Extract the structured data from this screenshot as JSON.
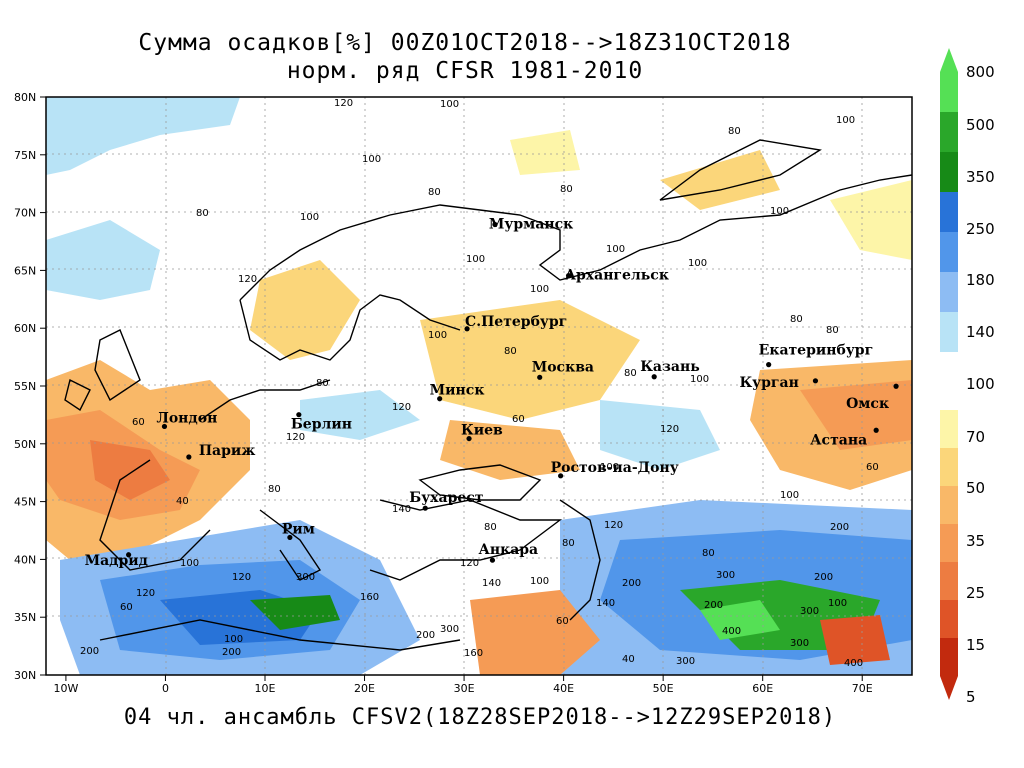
{
  "title": {
    "line1": "Сумма осадков[%] 00Z01OCT2018-->18Z31OCT2018",
    "line2": "норм. ряд CFSR 1981-2010"
  },
  "footer": "04 чл. ансамбль CFSV2(18Z28SEP2018-->12Z29SEP2018)",
  "map": {
    "lat_labels": [
      "80N",
      "75N",
      "70N",
      "65N",
      "60N",
      "55N",
      "50N",
      "45N",
      "40N",
      "35N",
      "30N"
    ],
    "lon_labels": [
      "10W",
      "0",
      "10E",
      "20E",
      "30E",
      "40E",
      "50E",
      "60E",
      "70E"
    ],
    "cities": [
      {
        "name": "Мурманск",
        "lon": 33.1,
        "lat": 68.97,
        "dx": -6,
        "dy": 4
      },
      {
        "name": "Архангельск",
        "lon": 40.5,
        "lat": 64.55,
        "dx": -4,
        "dy": 4
      },
      {
        "name": "С.Петербург",
        "lon": 30.3,
        "lat": 59.95,
        "dx": -2,
        "dy": -3
      },
      {
        "name": "Москва",
        "lon": 37.6,
        "lat": 55.75,
        "dx": -8,
        "dy": -6
      },
      {
        "name": "Казань",
        "lon": 49.1,
        "lat": 55.8,
        "dx": -14,
        "dy": -6
      },
      {
        "name": "Екатеринбург",
        "lon": 60.6,
        "lat": 56.85,
        "dx": -10,
        "dy": -10
      },
      {
        "name": "Курган",
        "lon": 65.3,
        "lat": 55.45,
        "dx": -76,
        "dy": 6
      },
      {
        "name": "Омск",
        "lon": 73.4,
        "lat": 54.98,
        "dx": -50,
        "dy": 22
      },
      {
        "name": "Астана",
        "lon": 71.4,
        "lat": 51.17,
        "dx": -66,
        "dy": 14
      },
      {
        "name": "Минск",
        "lon": 27.55,
        "lat": 53.9,
        "dx": -10,
        "dy": -4
      },
      {
        "name": "Берлин",
        "lon": 13.4,
        "lat": 52.52,
        "dx": -8,
        "dy": 14
      },
      {
        "name": "Киев",
        "lon": 30.5,
        "lat": 50.45,
        "dx": -8,
        "dy": -4
      },
      {
        "name": "Лондон",
        "lon": -0.1,
        "lat": 51.5,
        "dx": -8,
        "dy": -4
      },
      {
        "name": "Париж",
        "lon": 2.35,
        "lat": 48.86,
        "dx": 10,
        "dy": -2
      },
      {
        "name": "Ростов-на-Дону",
        "lon": 39.7,
        "lat": 47.23,
        "dx": -10,
        "dy": -4
      },
      {
        "name": "Бухарест",
        "lon": 26.1,
        "lat": 44.43,
        "dx": -16,
        "dy": -6
      },
      {
        "name": "Рим",
        "lon": 12.5,
        "lat": 41.9,
        "dx": -8,
        "dy": -4
      },
      {
        "name": "Мадрид",
        "lon": -3.7,
        "lat": 40.4,
        "dx": -44,
        "dy": 10
      },
      {
        "name": "Анкара",
        "lon": 32.85,
        "lat": 39.93,
        "dx": -14,
        "dy": -6
      }
    ]
  },
  "legend": {
    "labels": [
      "800",
      "500",
      "350",
      "250",
      "180",
      "140",
      "100",
      "70",
      "50",
      "35",
      "25",
      "15",
      "5"
    ]
  },
  "colors": {
    "frame": "#000000",
    "c_800": "#55e055",
    "c_500": "#2aa72a",
    "c_350": "#178a17",
    "c_250": "#2873d8",
    "c_180": "#5196ea",
    "c_140": "#8dbcf3",
    "c_110": "#b8e3f6",
    "c_75": "#fdf5a8",
    "c_60": "#fbd67a",
    "c_45": "#f9b868",
    "c_35": "#f59b55",
    "c_25": "#ed7c41",
    "c_15": "#df5427",
    "c_5": "#c22a0e"
  }
}
